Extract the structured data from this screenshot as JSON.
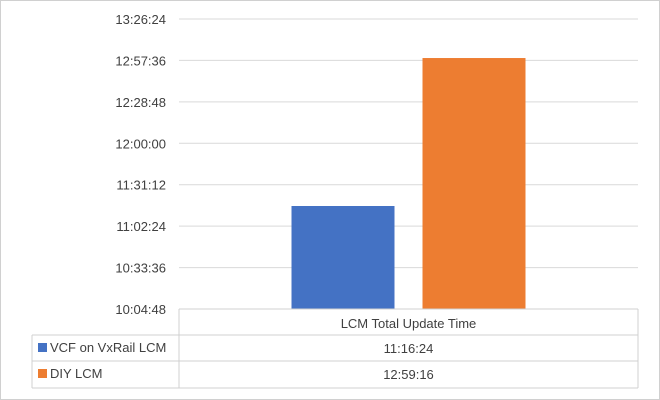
{
  "chart_data": {
    "type": "bar",
    "title": "",
    "xlabel": "",
    "ylabel": "",
    "categories": [
      "LCM Total Update Time"
    ],
    "series": [
      {
        "name": "VCF on VxRail LCM",
        "values": [
          "11:16:24"
        ],
        "color": "#4472c4"
      },
      {
        "name": "DIY LCM",
        "values": [
          "12:59:16"
        ],
        "color": "#ed7d31"
      }
    ],
    "y_axis": {
      "ticks": [
        "10:04:48",
        "10:33:36",
        "11:02:24",
        "11:31:12",
        "12:00:00",
        "12:28:48",
        "12:57:36",
        "13:26:24"
      ],
      "ylim": [
        "10:04:48",
        "13:26:24"
      ]
    },
    "grid": true,
    "legend": "data table with legend keys below chart"
  }
}
